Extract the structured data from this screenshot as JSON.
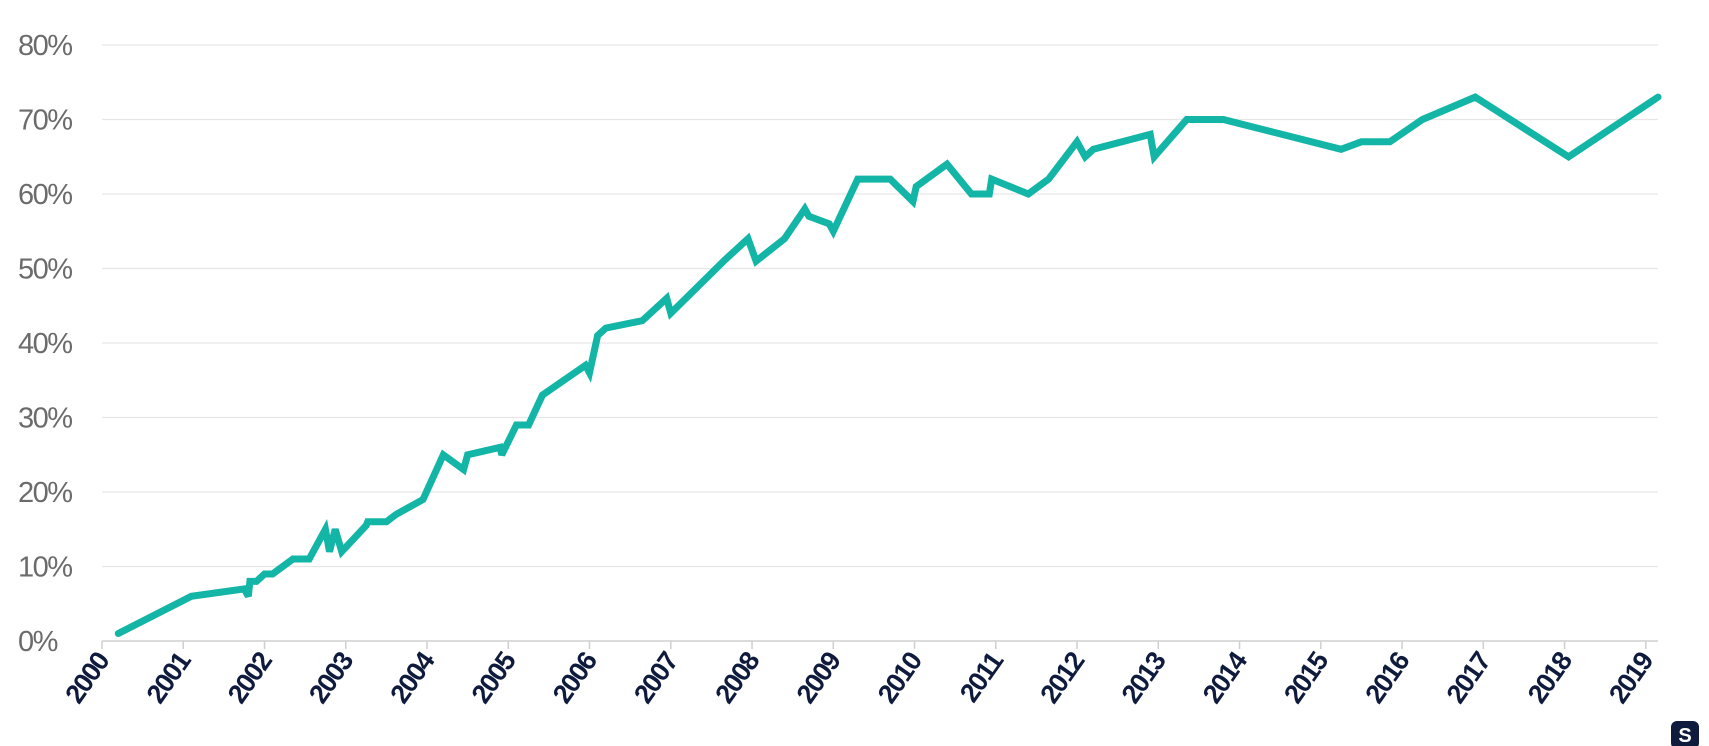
{
  "colors": {
    "series": "#13b5a6",
    "tick_label": "#6b6b6b",
    "year_label": "#0f1b3d",
    "grid": "#e6e6e6",
    "logo": "#0f1b3d"
  },
  "logo": {
    "icon": "brand-logo-icon",
    "text": "S"
  },
  "chart_data": {
    "type": "line",
    "title": "",
    "xlabel": "",
    "ylabel": "",
    "xlim": [
      2000,
      2019.15
    ],
    "ylim": [
      0,
      80
    ],
    "grid": true,
    "legend": "none",
    "y_ticks": [
      {
        "value": 0,
        "label": "0%"
      },
      {
        "value": 10,
        "label": "10%"
      },
      {
        "value": 20,
        "label": "20%"
      },
      {
        "value": 30,
        "label": "30%"
      },
      {
        "value": 40,
        "label": "40%"
      },
      {
        "value": 50,
        "label": "50%"
      },
      {
        "value": 60,
        "label": "60%"
      },
      {
        "value": 70,
        "label": "70%"
      },
      {
        "value": 80,
        "label": "80%"
      }
    ],
    "x_ticks": [
      {
        "value": 2000,
        "label": "2000"
      },
      {
        "value": 2001,
        "label": "2001"
      },
      {
        "value": 2002,
        "label": "2002"
      },
      {
        "value": 2003,
        "label": "2003"
      },
      {
        "value": 2004,
        "label": "2004"
      },
      {
        "value": 2005,
        "label": "2005"
      },
      {
        "value": 2006,
        "label": "2006"
      },
      {
        "value": 2007,
        "label": "2007"
      },
      {
        "value": 2008,
        "label": "2008"
      },
      {
        "value": 2009,
        "label": "2009"
      },
      {
        "value": 2010,
        "label": "2010"
      },
      {
        "value": 2011,
        "label": "2011"
      },
      {
        "value": 2012,
        "label": "2012"
      },
      {
        "value": 2013,
        "label": "2013"
      },
      {
        "value": 2014,
        "label": "2014"
      },
      {
        "value": 2015,
        "label": "2015"
      },
      {
        "value": 2016,
        "label": "2016"
      },
      {
        "value": 2017,
        "label": "2017"
      },
      {
        "value": 2018,
        "label": "2018"
      },
      {
        "value": 2019,
        "label": "2019"
      }
    ],
    "series": [
      {
        "color": "#13b5a6",
        "points": [
          [
            2000.2,
            1
          ],
          [
            2001.1,
            6
          ],
          [
            2001.75,
            7
          ],
          [
            2001.8,
            6
          ],
          [
            2001.82,
            8
          ],
          [
            2001.9,
            8
          ],
          [
            2002.0,
            9
          ],
          [
            2002.1,
            9
          ],
          [
            2002.35,
            11
          ],
          [
            2002.55,
            11
          ],
          [
            2002.75,
            15
          ],
          [
            2002.8,
            12
          ],
          [
            2002.87,
            15
          ],
          [
            2002.95,
            12
          ],
          [
            2003.25,
            15.5
          ],
          [
            2003.27,
            16
          ],
          [
            2003.5,
            16
          ],
          [
            2003.62,
            17
          ],
          [
            2003.95,
            19
          ],
          [
            2004.2,
            25
          ],
          [
            2004.45,
            23
          ],
          [
            2004.5,
            25
          ],
          [
            2004.9,
            26
          ],
          [
            2004.92,
            25
          ],
          [
            2005.1,
            29
          ],
          [
            2005.25,
            29
          ],
          [
            2005.42,
            33
          ],
          [
            2005.95,
            37
          ],
          [
            2006.0,
            36
          ],
          [
            2006.1,
            41
          ],
          [
            2006.2,
            42
          ],
          [
            2006.65,
            43
          ],
          [
            2006.95,
            46
          ],
          [
            2007.0,
            44
          ],
          [
            2007.65,
            51
          ],
          [
            2007.95,
            54
          ],
          [
            2008.05,
            51
          ],
          [
            2008.4,
            54
          ],
          [
            2008.65,
            58
          ],
          [
            2008.7,
            57
          ],
          [
            2008.95,
            56
          ],
          [
            2009.0,
            55
          ],
          [
            2009.3,
            62
          ],
          [
            2009.7,
            62
          ],
          [
            2009.98,
            59
          ],
          [
            2010.02,
            61
          ],
          [
            2010.4,
            64
          ],
          [
            2010.7,
            60
          ],
          [
            2010.92,
            60
          ],
          [
            2010.95,
            62
          ],
          [
            2011.4,
            60
          ],
          [
            2011.65,
            62
          ],
          [
            2012.0,
            67
          ],
          [
            2012.1,
            65
          ],
          [
            2012.2,
            66
          ],
          [
            2012.9,
            68
          ],
          [
            2012.95,
            65
          ],
          [
            2013.35,
            70
          ],
          [
            2013.8,
            70
          ],
          [
            2015.25,
            66
          ],
          [
            2015.5,
            67
          ],
          [
            2015.85,
            67
          ],
          [
            2016.25,
            70
          ],
          [
            2016.9,
            73
          ],
          [
            2018.05,
            65
          ],
          [
            2019.15,
            73
          ]
        ]
      }
    ]
  }
}
